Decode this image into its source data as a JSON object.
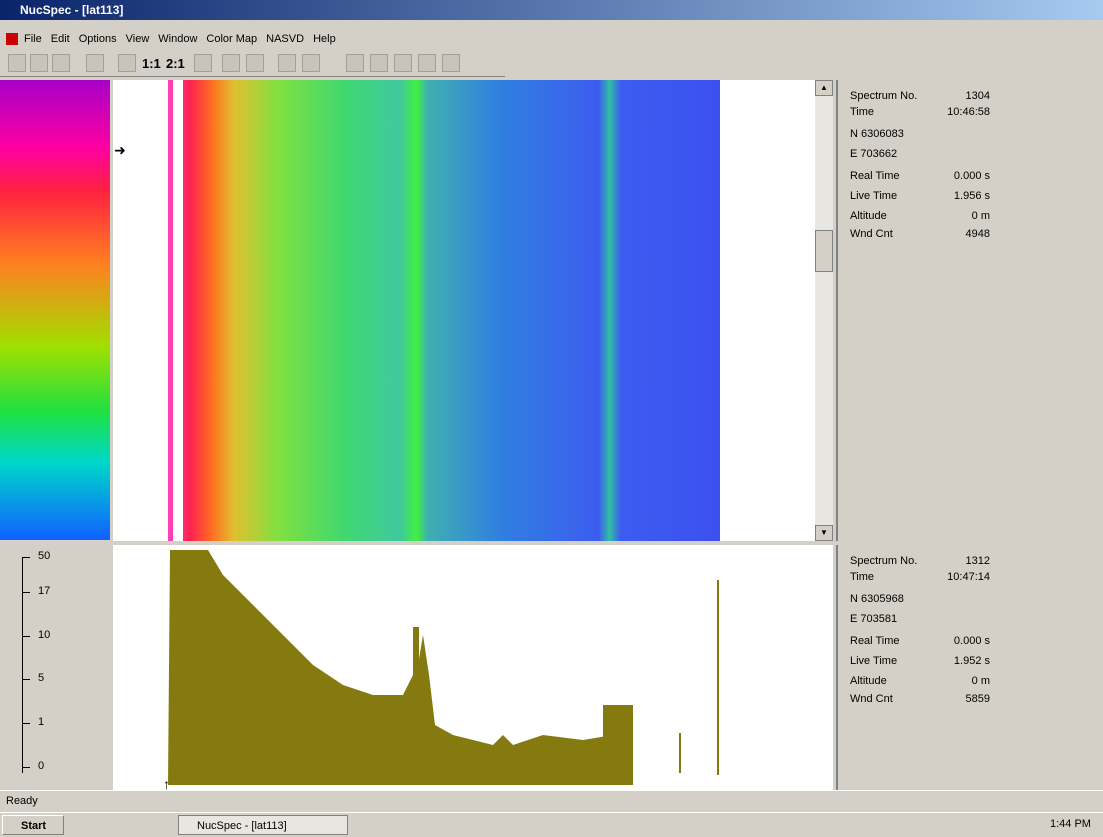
{
  "window": {
    "title": "NucSpec - [lat113]"
  },
  "menu": [
    "File",
    "Edit",
    "Options",
    "View",
    "Window",
    "Color Map",
    "NASVD",
    "Help"
  ],
  "toolbar": [
    "1:1",
    "2:1"
  ],
  "scale_ticks": [
    "50",
    "17",
    "10",
    "5",
    "1",
    "0"
  ],
  "info_panels": [
    {
      "rows": [
        [
          "Spectrum No.",
          "1304"
        ],
        [
          "Time",
          "10:46:58"
        ],
        [
          "N 6306083"
        ],
        [
          "E 703662"
        ],
        [
          "Real Time",
          "0.000 s"
        ],
        [
          "Live Time",
          "1.956 s"
        ],
        [
          "Altitude",
          "0 m"
        ],
        [
          "Wnd Cnt",
          "4948"
        ]
      ]
    },
    {
      "rows": [
        [
          "Spectrum No.",
          "1312"
        ],
        [
          "Time",
          "10:47:14"
        ],
        [
          "N 6305968"
        ],
        [
          "E 703581"
        ],
        [
          "Real Time",
          "0.000 s"
        ],
        [
          "Live Time",
          "1.952 s"
        ],
        [
          "Altitude",
          "0 m"
        ],
        [
          "Wnd Cnt",
          "5859"
        ]
      ]
    }
  ],
  "status": "Ready",
  "taskbar": {
    "start": "Start",
    "task": "NucSpec - [lat113]",
    "clock": "1:44 PM"
  }
}
